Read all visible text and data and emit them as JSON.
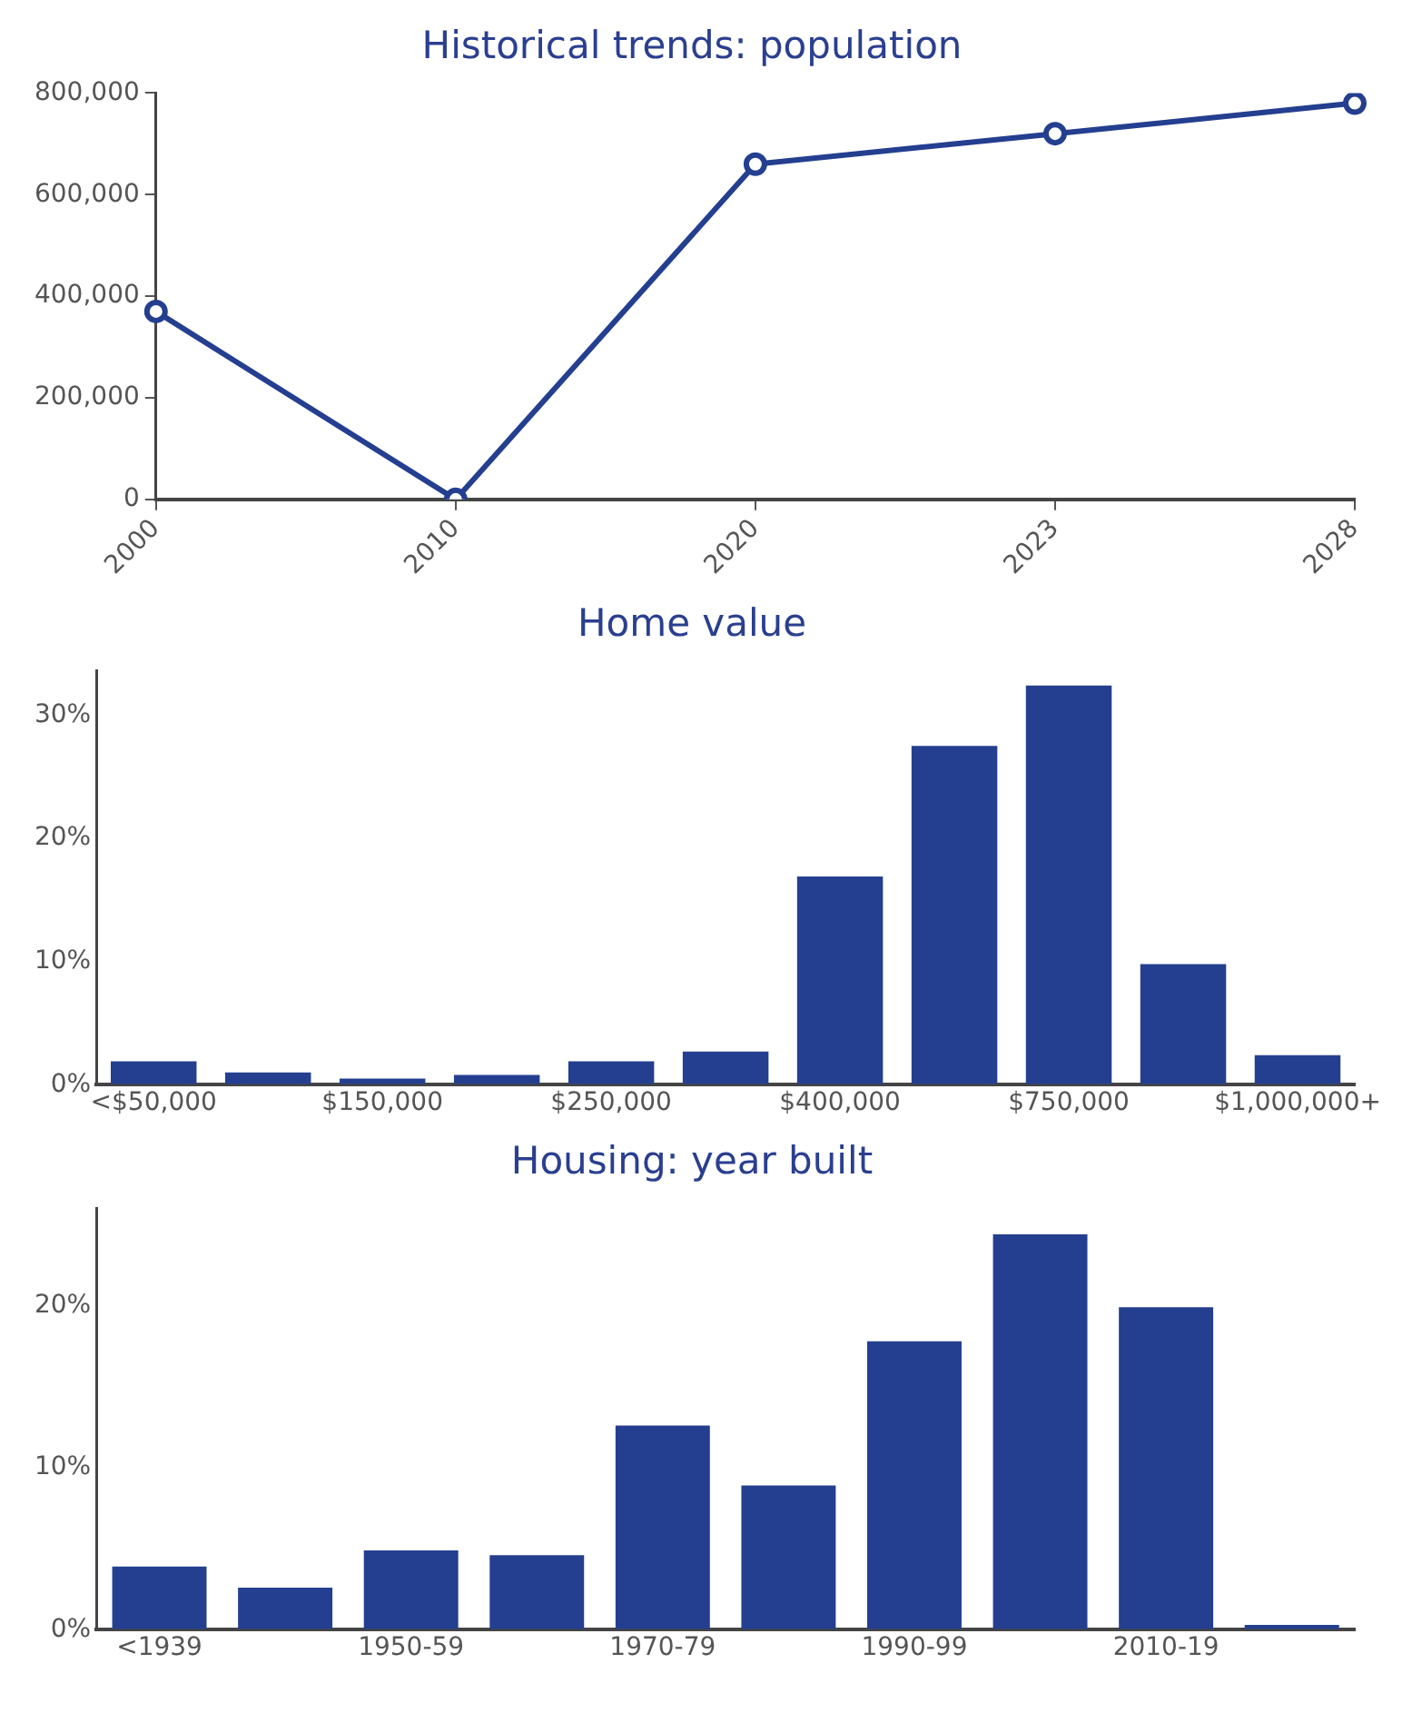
{
  "chart_data": [
    {
      "type": "line",
      "title": "Historical trends: population",
      "categories": [
        "2000",
        "2010",
        "2020",
        "2023",
        "2028"
      ],
      "series": [
        {
          "color": "#243f8f",
          "values": [
            370000,
            0,
            660000,
            720000,
            780000
          ]
        }
      ],
      "ylim": [
        0,
        800000
      ],
      "yticks": [
        0,
        {
          "value": 200000,
          "label": "200,000"
        },
        {
          "value": 400000,
          "label": "400,000"
        },
        {
          "value": 600000,
          "label": "600,000"
        },
        {
          "value": 800000,
          "label": "800,000"
        }
      ],
      "marker": "circle",
      "grid": false,
      "legend": false
    },
    {
      "type": "bar",
      "title": "Home value",
      "categories": [
        "<$50,000",
        null,
        "$150,000",
        null,
        "$250,000",
        null,
        "$400,000",
        null,
        "$750,000",
        null,
        "$1,000,000+"
      ],
      "series": [
        {
          "color": "#243f8f",
          "values": [
            1.9,
            1,
            0.5,
            0.8,
            1.9,
            2.7,
            16.9,
            27.5,
            32.4,
            9.8,
            2.4
          ]
        }
      ],
      "ylim": [
        0,
        33.6
      ],
      "yticks": [
        {
          "value": 0,
          "label": "0%"
        },
        {
          "value": 10,
          "label": "10%"
        },
        {
          "value": 20,
          "label": "20%"
        },
        {
          "value": 30,
          "label": "30%"
        }
      ],
      "grid": false,
      "legend": false
    },
    {
      "type": "bar",
      "title": "Housing: year built",
      "categories": [
        "<1939",
        null,
        "1950-59",
        null,
        "1970-79",
        null,
        "1990-99",
        null,
        "2010-19",
        null
      ],
      "series": [
        {
          "color": "#243f8f",
          "values": [
            3.9,
            2.6,
            4.9,
            4.6,
            12.6,
            8.9,
            17.8,
            24.4,
            19.9,
            0.3
          ]
        }
      ],
      "ylim": [
        0,
        26
      ],
      "yticks": [
        {
          "value": 0,
          "label": "0%"
        },
        {
          "value": 10,
          "label": "10%"
        },
        {
          "value": 20,
          "label": "20%"
        }
      ],
      "grid": false,
      "legend": false
    }
  ]
}
